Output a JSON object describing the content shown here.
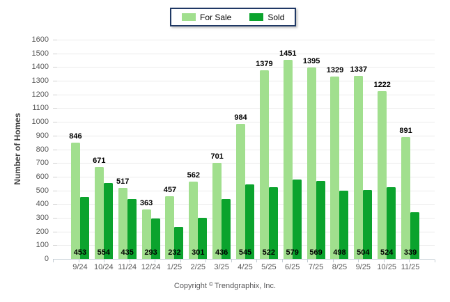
{
  "legend": {
    "items": [
      {
        "label": "For Sale",
        "color": "#a1df8e"
      },
      {
        "label": "Sold",
        "color": "#0ba32d"
      }
    ],
    "border_color": "#1f3864"
  },
  "chart_data": {
    "type": "bar",
    "title": "",
    "xlabel": "",
    "ylabel": "Number of Homes",
    "ylim": [
      0,
      1600
    ],
    "ytick_step": 100,
    "grid": true,
    "legend_position": "top-center",
    "categories": [
      "9/24",
      "10/24",
      "11/24",
      "12/24",
      "1/25",
      "2/25",
      "3/25",
      "4/25",
      "5/25",
      "6/25",
      "7/25",
      "8/25",
      "9/25",
      "10/25",
      "11/25"
    ],
    "series": [
      {
        "name": "For Sale",
        "color": "#a1df8e",
        "value_label_position": "above-bar",
        "values": [
          846,
          671,
          517,
          363,
          457,
          562,
          701,
          984,
          1379,
          1451,
          1395,
          1329,
          1337,
          1222,
          891
        ]
      },
      {
        "name": "Sold",
        "color": "#0ba32d",
        "value_label_position": "inside-bar-bottom",
        "values": [
          453,
          554,
          435,
          293,
          232,
          301,
          436,
          545,
          522,
          579,
          569,
          498,
          504,
          524,
          339
        ]
      }
    ]
  },
  "footer": {
    "copyright_prefix": "Copyright",
    "copyright_symbol": "©",
    "copyright_suffix": "Trendgraphix, Inc."
  }
}
